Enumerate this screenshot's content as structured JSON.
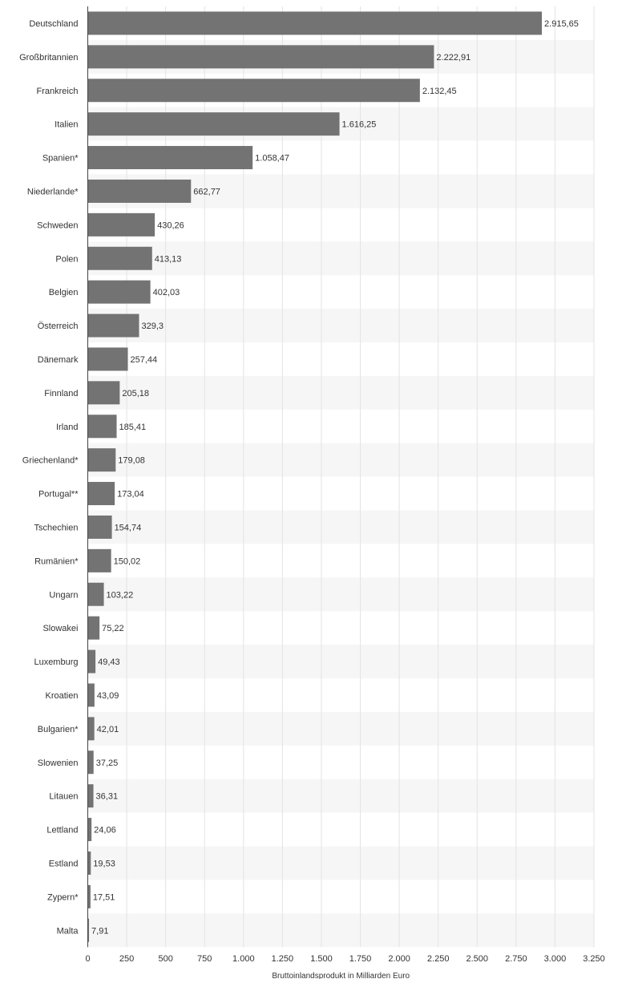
{
  "chart_data": {
    "type": "bar",
    "orientation": "horizontal",
    "categories": [
      "Deutschland",
      "Großbritannien",
      "Frankreich",
      "Italien",
      "Spanien*",
      "Niederlande*",
      "Schweden",
      "Polen",
      "Belgien",
      "Österreich",
      "Dänemark",
      "Finnland",
      "Irland",
      "Griechenland*",
      "Portugal**",
      "Tschechien",
      "Rumänien*",
      "Ungarn",
      "Slowakei",
      "Luxemburg",
      "Kroatien",
      "Bulgarien*",
      "Slowenien",
      "Litauen",
      "Lettland",
      "Estland",
      "Zypern*",
      "Malta"
    ],
    "values": [
      2915.65,
      2222.91,
      2132.45,
      1616.25,
      1058.47,
      662.77,
      430.26,
      413.13,
      402.03,
      329.3,
      257.44,
      205.18,
      185.41,
      179.08,
      173.04,
      154.74,
      150.02,
      103.22,
      75.22,
      49.43,
      43.09,
      42.01,
      37.25,
      36.31,
      24.06,
      19.53,
      17.51,
      7.91
    ],
    "value_labels": [
      "2.915,65",
      "2.222,91",
      "2.132,45",
      "1.616,25",
      "1.058,47",
      "662,77",
      "430,26",
      "413,13",
      "402,03",
      "329,3",
      "257,44",
      "205,18",
      "185,41",
      "179,08",
      "173,04",
      "154,74",
      "150,02",
      "103,22",
      "75,22",
      "49,43",
      "43,09",
      "42,01",
      "37,25",
      "36,31",
      "24,06",
      "19,53",
      "17,51",
      "7,91"
    ],
    "xticks": [
      0,
      250,
      500,
      750,
      1000,
      1250,
      1500,
      1750,
      2000,
      2250,
      2500,
      2750,
      3000,
      3250
    ],
    "xtick_labels": [
      "0",
      "250",
      "500",
      "750",
      "1.000",
      "1.250",
      "1.500",
      "1.750",
      "2.000",
      "2.250",
      "2.500",
      "2.750",
      "3.000",
      "3.250"
    ],
    "xlim": [
      0,
      3250
    ],
    "xlabel": "Bruttoinlandsprodukt in Milliarden Euro",
    "ylabel": "",
    "title": "",
    "grid": true,
    "colors": {
      "bar": "#737373",
      "band": "#f6f6f6",
      "grid": "#e3e3e3",
      "text": "#333333",
      "axis": "#444444"
    }
  }
}
